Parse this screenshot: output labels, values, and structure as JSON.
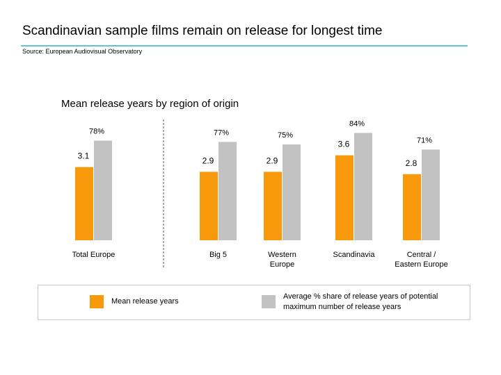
{
  "slide": {
    "title": "Scandinavian sample films remain on release for longest time",
    "source": "Source: European Audiovisual Observatory",
    "accent_color": "#5fc6cf"
  },
  "chart_data": {
    "type": "bar",
    "title": "Mean release years by region of origin",
    "categories": [
      "Total Europe",
      "Big 5",
      "Western Europe",
      "Scandinavia",
      "Central / Eastern Europe"
    ],
    "series": [
      {
        "name": "Mean release years",
        "axis": "left",
        "color": "#f7990a",
        "values": [
          3.1,
          2.9,
          2.9,
          3.6,
          2.8
        ],
        "labels": [
          "3.1",
          "2.9",
          "2.9",
          "3.6",
          "2.8"
        ]
      },
      {
        "name": "Average % share of release years of potential maximum number of release years",
        "axis": "right",
        "color": "#c2c2c2",
        "values": [
          78,
          77,
          75,
          84,
          71
        ],
        "labels": [
          "78%",
          "77%",
          "75%",
          "84%",
          "71%"
        ]
      }
    ],
    "yaxis_visible": false,
    "grid": false,
    "legend_placement": "bottom",
    "separator_after_first_category": true,
    "category_label_lines": [
      [
        "Total Europe"
      ],
      [
        "Big 5"
      ],
      [
        "Western",
        "Europe"
      ],
      [
        "Scandinavia"
      ],
      [
        "Central /",
        "Eastern Europe"
      ]
    ]
  },
  "legend": {
    "items": [
      {
        "label": "Mean release years",
        "color": "#f7990a"
      },
      {
        "label_lines": [
          "Average % share of release years of potential",
          "maximum number of release years"
        ],
        "color": "#c2c2c2"
      }
    ]
  }
}
